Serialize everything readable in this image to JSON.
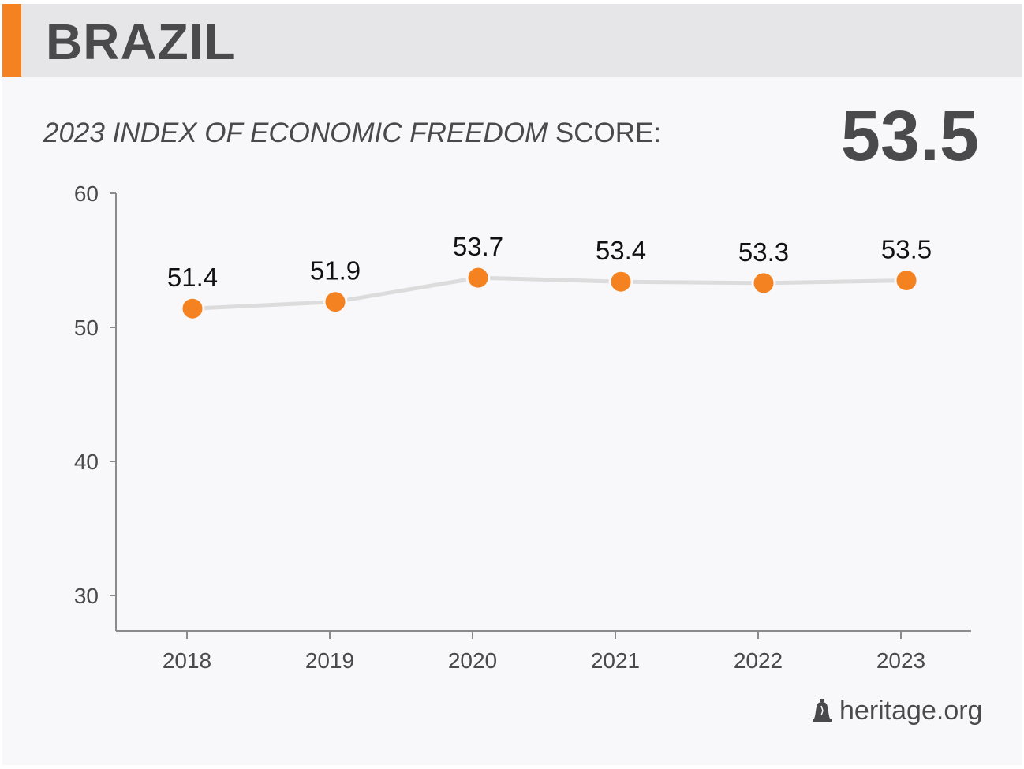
{
  "header": {
    "country": "BRAZIL"
  },
  "subtitle": {
    "italic_part": "2023 INDEX OF ECONOMIC FREEDOM",
    "plain_part": " SCORE:"
  },
  "score": "53.5",
  "footer": {
    "site": "heritage.org",
    "icon": "liberty-bell-icon"
  },
  "colors": {
    "accent": "#f58220",
    "line": "#dcdcdc",
    "text": "#4a4a4c",
    "axis": "#8a8a8c"
  },
  "chart_data": {
    "type": "line",
    "title": "",
    "x": [
      "2018",
      "2019",
      "2020",
      "2021",
      "2022",
      "2023"
    ],
    "y": [
      51.4,
      51.9,
      53.7,
      53.4,
      53.3,
      53.5
    ],
    "data_labels": [
      "51.4",
      "51.9",
      "53.7",
      "53.4",
      "53.3",
      "53.5"
    ],
    "ylim": [
      30,
      60
    ],
    "yticks": [
      30,
      40,
      50,
      60
    ],
    "grid": false,
    "xlabel": "",
    "ylabel": ""
  }
}
